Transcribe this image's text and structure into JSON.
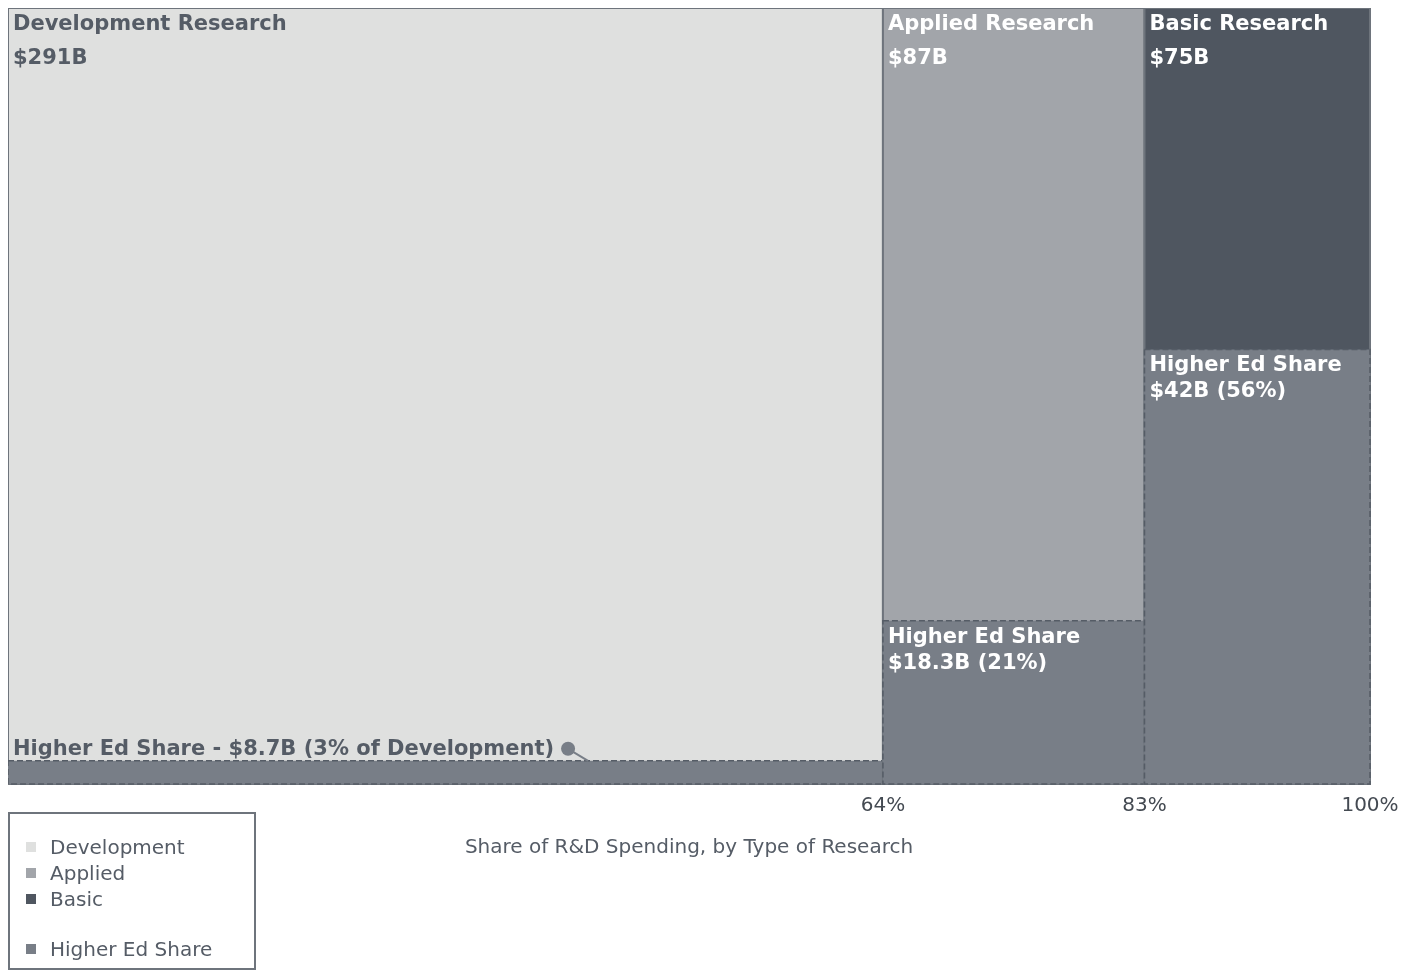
{
  "chart_data": {
    "type": "other",
    "xlabel": "Share of R&D Spending, by Type of Research",
    "categories": [
      "Development Research",
      "Applied Research",
      "Basic Research"
    ],
    "series": [
      {
        "name": "Development",
        "color": "#dfe0df",
        "values": [
          291,
          null,
          null
        ],
        "value_labels": [
          "$291B",
          null,
          null
        ]
      },
      {
        "name": "Applied",
        "color": "#a2a5aa",
        "values": [
          null,
          87,
          null
        ],
        "value_labels": [
          null,
          "$87B",
          null
        ]
      },
      {
        "name": "Basic",
        "color": "#4f5660",
        "values": [
          null,
          null,
          75
        ],
        "value_labels": [
          null,
          null,
          "$75B"
        ]
      },
      {
        "name": "Higher Ed Share",
        "color": "#787e87",
        "values": [
          8.7,
          18.3,
          42
        ],
        "value_labels": [
          "$8.7B",
          "$18.3B",
          "$42B"
        ],
        "line_style": "dashed"
      }
    ],
    "annotations": [
      "Higher Ed Share -",
      "(3% of Development)",
      "Higher Ed Share",
      "(21%)",
      "Higher Ed Share",
      "(56%)",
      "64%",
      "83%",
      "100%"
    ],
    "legend": "bottom left"
  }
}
